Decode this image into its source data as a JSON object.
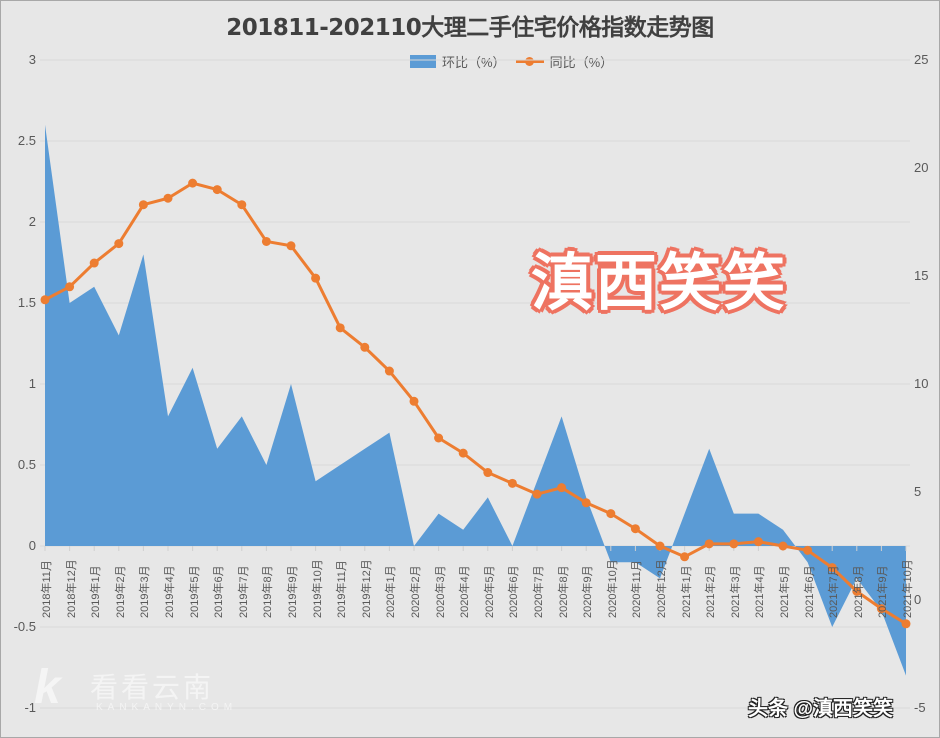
{
  "title": "201811-202110大理二手住宅价格指数走势图",
  "legend": {
    "series1_label": "环比（%）",
    "series2_label": "同比（%）"
  },
  "axes": {
    "left_ticks": [
      "3",
      "2.5",
      "2",
      "1.5",
      "1",
      "0.5",
      "0",
      "-0.5",
      "-1"
    ],
    "right_ticks": [
      "25",
      "20",
      "15",
      "10",
      "5",
      "0",
      "-5"
    ]
  },
  "watermark": {
    "stamp_text": "滇西笑笑",
    "site_cn": "看看云南",
    "site_en": "KANKANYN.COM",
    "credit": "头条 @滇西笑笑"
  },
  "colors": {
    "area": "#5b9bd5",
    "line": "#ed7d31",
    "background": "#e7e7e7",
    "grid": "#d9d9d9"
  },
  "chart_data": {
    "type": "area+line (dual axis)",
    "title": "201811-202110大理二手住宅价格指数走势图",
    "xlabel": "",
    "categories": [
      "2018年11月",
      "2018年12月",
      "2019年1月",
      "2019年2月",
      "2019年3月",
      "2019年4月",
      "2019年5月",
      "2019年6月",
      "2019年7月",
      "2019年8月",
      "2019年9月",
      "2019年10月",
      "2019年11月",
      "2019年12月",
      "2020年1月",
      "2020年2月",
      "2020年3月",
      "2020年4月",
      "2020年5月",
      "2020年6月",
      "2020年7月",
      "2020年8月",
      "2020年9月",
      "2020年10月",
      "2020年11月",
      "2020年12月",
      "2021年1月",
      "2021年2月",
      "2021年3月",
      "2021年4月",
      "2021年5月",
      "2021年6月",
      "2021年7月",
      "2021年8月",
      "2021年9月",
      "2021年10月"
    ],
    "series": [
      {
        "name": "环比（%）",
        "type": "area",
        "axis": "left",
        "values": [
          2.6,
          1.5,
          1.6,
          1.3,
          1.8,
          0.8,
          1.1,
          0.6,
          0.8,
          0.5,
          1.0,
          0.4,
          0.5,
          0.6,
          0.7,
          0.0,
          0.2,
          0.1,
          0.3,
          0.0,
          0.4,
          0.8,
          0.3,
          -0.1,
          -0.1,
          -0.2,
          0.2,
          0.6,
          0.2,
          0.2,
          0.1,
          -0.1,
          -0.5,
          -0.2,
          -0.4,
          -0.8
        ]
      },
      {
        "name": "同比（%）",
        "type": "line",
        "axis": "right",
        "values": [
          13.9,
          14.5,
          15.6,
          16.5,
          18.3,
          18.6,
          19.3,
          19.0,
          18.3,
          16.6,
          16.4,
          14.9,
          12.6,
          11.7,
          10.6,
          9.2,
          7.5,
          6.8,
          5.9,
          5.4,
          4.9,
          5.2,
          4.5,
          4.0,
          3.3,
          2.5,
          2.0,
          2.6,
          2.6,
          2.7,
          2.5,
          2.3,
          1.5,
          0.4,
          -0.4,
          -1.1
        ]
      }
    ],
    "ylim_left": [
      -1,
      3
    ],
    "ylim_right": [
      -5,
      25
    ],
    "grid": true,
    "legend_position": "top"
  }
}
